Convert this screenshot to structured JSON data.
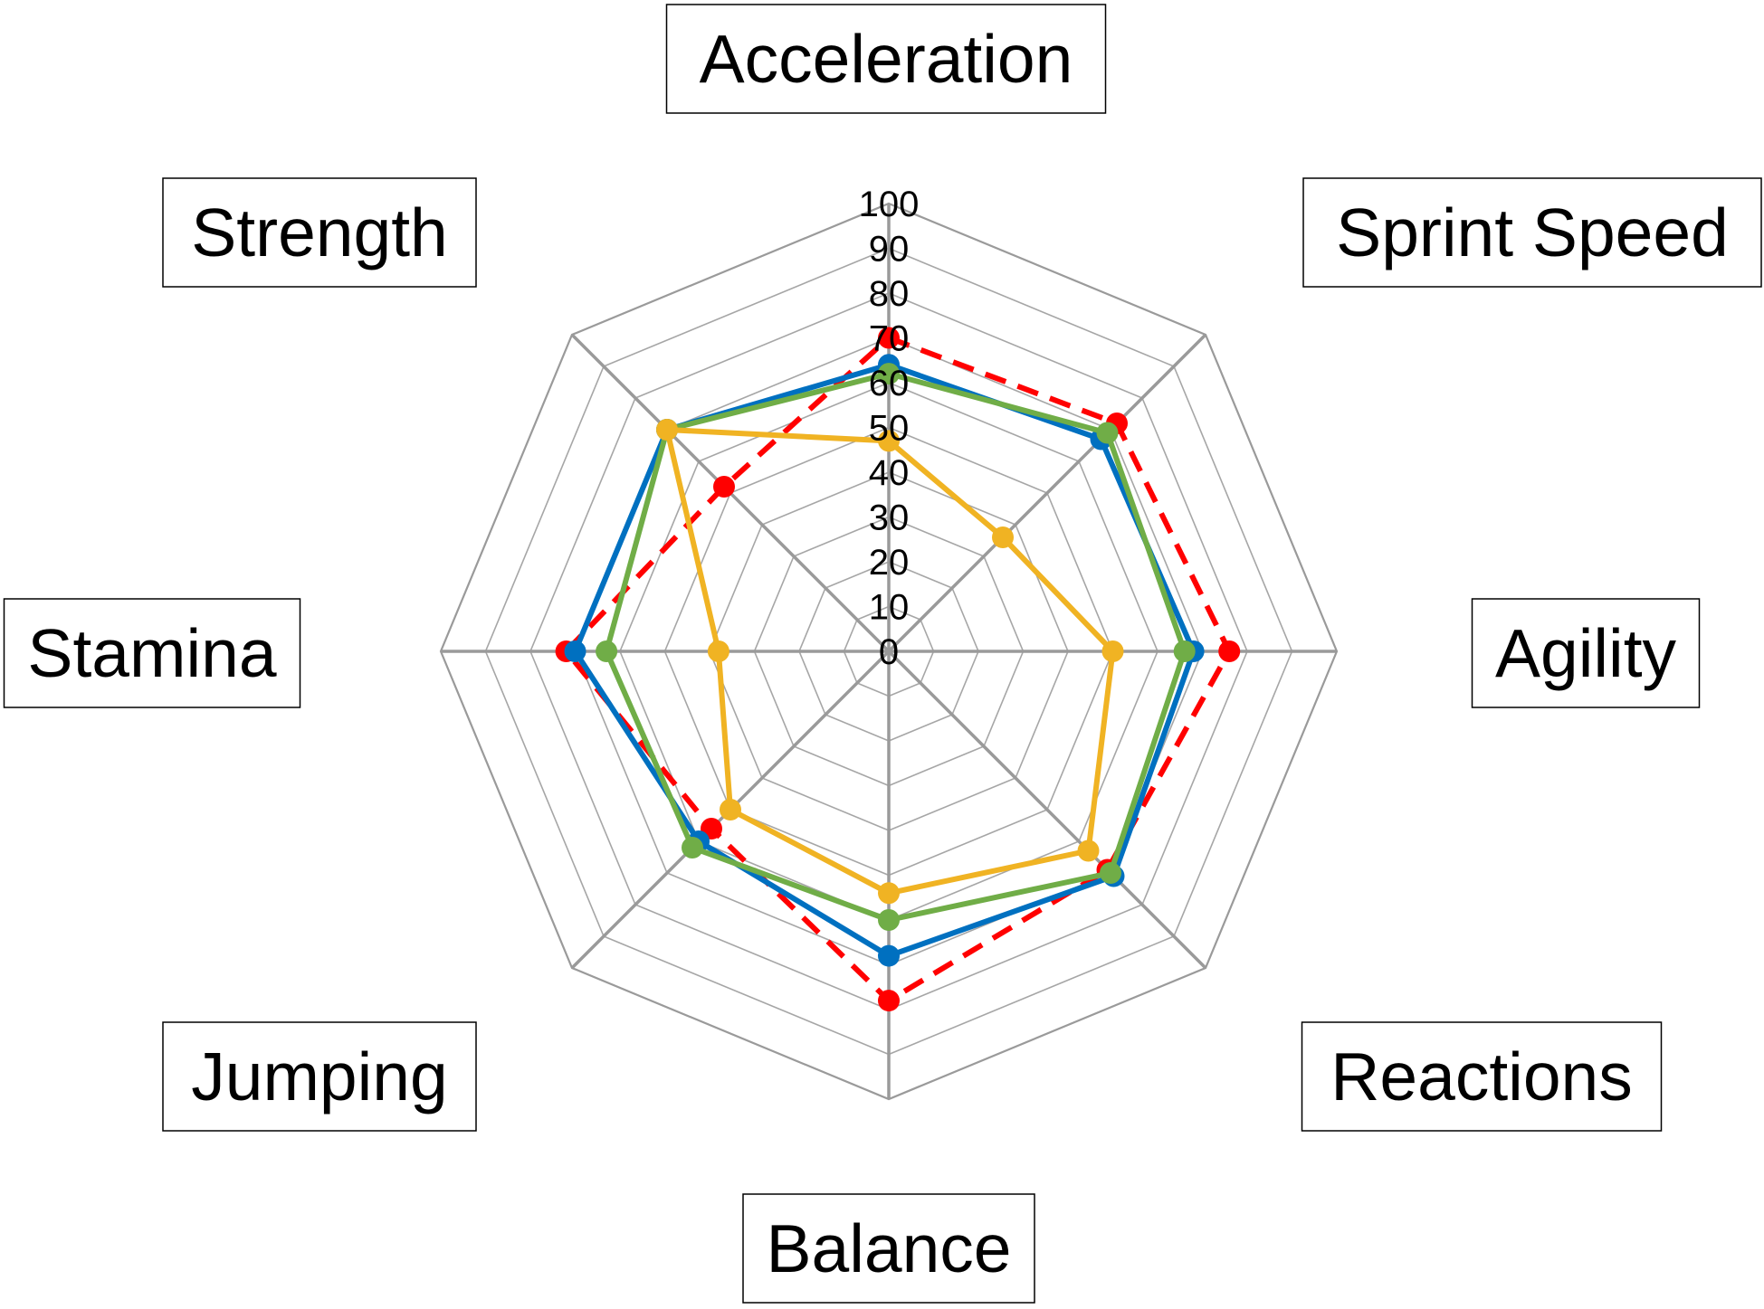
{
  "chart_data": {
    "type": "radar",
    "axes": [
      "Acceleration",
      "Sprint Speed",
      "Agility",
      "Reactions",
      "Balance",
      "Jumping",
      "Stamina",
      "Strength"
    ],
    "scale": {
      "min": 0,
      "max": 100,
      "step": 10
    },
    "tick_labels": [
      "0",
      "10",
      "20",
      "30",
      "40",
      "50",
      "60",
      "70",
      "80",
      "90",
      "100"
    ],
    "grid": true,
    "legend": "none",
    "series": [
      {
        "color": "#ff0000",
        "style": "dashed",
        "values": [
          70,
          72,
          76,
          69,
          78,
          56,
          72,
          52
        ]
      },
      {
        "color": "#0070c0",
        "style": "solid",
        "values": [
          64,
          67,
          68,
          71,
          68,
          60,
          70,
          70
        ]
      },
      {
        "color": "#70ad47",
        "style": "solid",
        "values": [
          62,
          69,
          66,
          70,
          60,
          62,
          63,
          70
        ]
      },
      {
        "color": "#f0b323",
        "style": "solid",
        "values": [
          47,
          36,
          50,
          63,
          54,
          50,
          38,
          70
        ]
      }
    ]
  }
}
